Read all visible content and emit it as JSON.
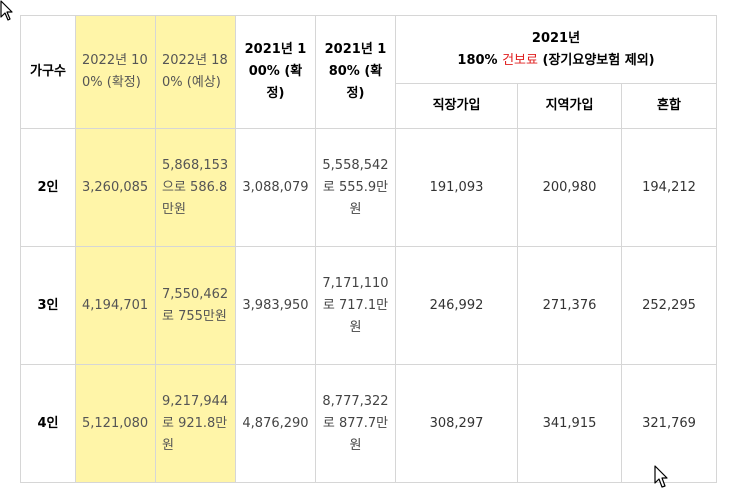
{
  "header": {
    "household": "가구수",
    "col_2022_100": "2022년 100% (확정)",
    "col_2022_180": "2022년 180% (예상)",
    "col_2021_100": "2021년 100% (확정)",
    "col_2021_180": "2021년 180% (확정)",
    "insurance_title_line1": "2021년",
    "insurance_title_prefix": "180% ",
    "insurance_title_red": "건보료",
    "insurance_title_suffix": " (장기요양보험 제외)",
    "sub_employee": "직장가입",
    "sub_regional": "지역가입",
    "sub_mixed": "혼합"
  },
  "rows": [
    {
      "household": "2인",
      "v2022_100": "3,260,085",
      "v2022_180": "5,868,153으로 586.8만원",
      "v2021_100": "3,088,079",
      "v2021_180": "5,558,542로 555.9만원",
      "employee": "191,093",
      "regional": "200,980",
      "mixed": "194,212"
    },
    {
      "household": "3인",
      "v2022_100": "4,194,701",
      "v2022_180": "7,550,462로 755만원",
      "v2021_100": "3,983,950",
      "v2021_180": "7,171,110로 717.1만원",
      "employee": "246,992",
      "regional": "271,376",
      "mixed": "252,295"
    },
    {
      "household": "4인",
      "v2022_100": "5,121,080",
      "v2022_180": "9,217,944로 921.8만원",
      "v2021_100": "4,876,290",
      "v2021_180": "8,777,322로 877.7만원",
      "employee": "308,297",
      "regional": "341,915",
      "mixed": "321,769"
    }
  ],
  "colors": {
    "highlight_yellow": "#fff5a8",
    "red_text": "#e02020",
    "border": "#d6d6d6"
  },
  "icons": [
    "mouse-pointer-icon",
    "mouse-pointer-icon"
  ]
}
